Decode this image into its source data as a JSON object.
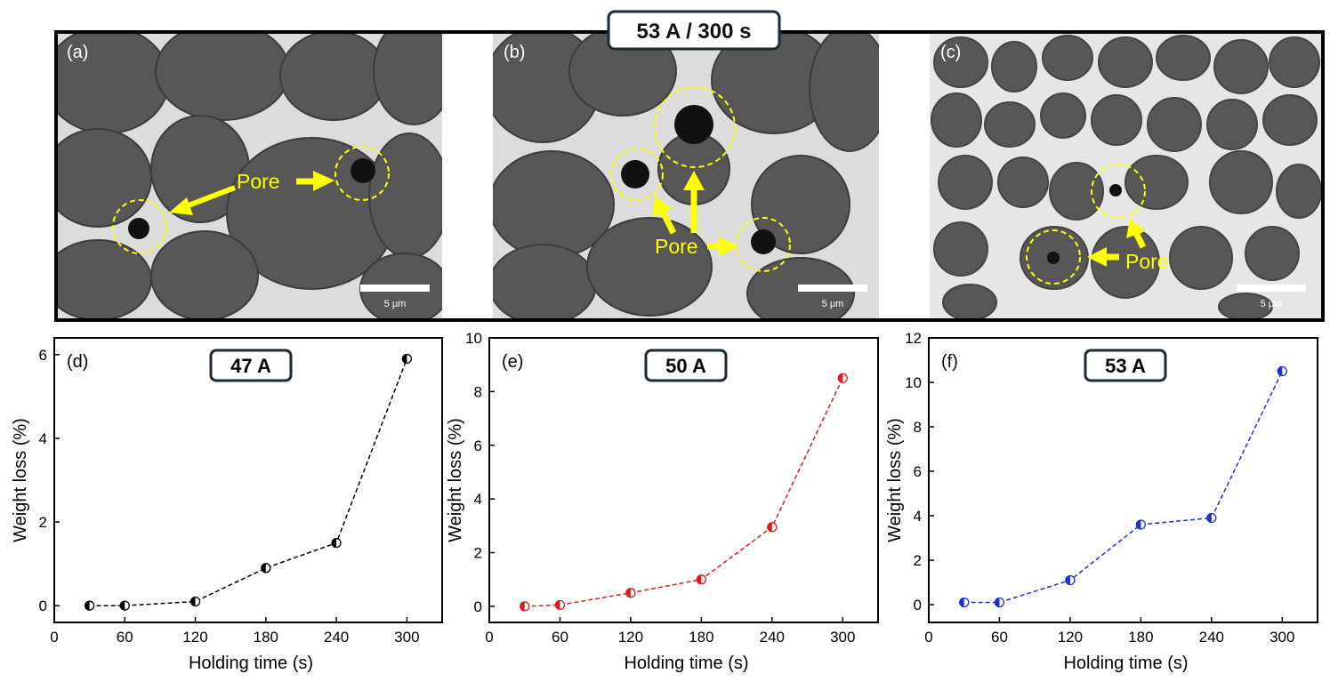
{
  "figure": {
    "header": "53 A / 300 s",
    "panels": [
      {
        "label": "(a)",
        "pore_label": "Pore",
        "scale_bar": "5 μm"
      },
      {
        "label": "(b)",
        "pore_label": "Pore",
        "scale_bar": "5 μm"
      },
      {
        "label": "(c)",
        "pore_label": "Pore",
        "scale_bar": "5 μm"
      }
    ]
  },
  "colors": {
    "panel_bg": "#4d4d4d",
    "grain": "#5a5a5a",
    "binder": "#dcdcdc",
    "annotation": "#ffff00",
    "series_47": "#000000",
    "series_50": "#e31a1c",
    "series_53": "#1f2fd6"
  },
  "chart_data": [
    {
      "type": "line",
      "panel_label": "(d)",
      "title": "47 A",
      "xlabel": "Holding time (s)",
      "ylabel": "Weight loss (%)",
      "xlim": [
        0,
        330
      ],
      "ylim": [
        -0.4,
        6.4
      ],
      "xticks": [
        0,
        60,
        120,
        180,
        240,
        300
      ],
      "yticks": [
        0,
        2,
        4,
        6
      ],
      "x": [
        30,
        60,
        120,
        180,
        240,
        300
      ],
      "values": [
        0.0,
        0.0,
        0.1,
        0.9,
        1.5,
        5.9
      ],
      "color": "#000000"
    },
    {
      "type": "line",
      "panel_label": "(e)",
      "title": "50 A",
      "xlabel": "Holding time (s)",
      "ylabel": "Weight loss (%)",
      "xlim": [
        0,
        330
      ],
      "ylim": [
        -0.6,
        10
      ],
      "xticks": [
        0,
        60,
        120,
        180,
        240,
        300
      ],
      "yticks": [
        0,
        2,
        4,
        6,
        8,
        10
      ],
      "x": [
        30,
        60,
        120,
        180,
        240,
        300
      ],
      "values": [
        0.0,
        0.05,
        0.5,
        1.0,
        2.95,
        8.5
      ],
      "color": "#e31a1c"
    },
    {
      "type": "line",
      "panel_label": "(f)",
      "title": "53 A",
      "xlabel": "Holding time (s)",
      "ylabel": "Weight loss (%)",
      "xlim": [
        0,
        330
      ],
      "ylim": [
        -0.8,
        12
      ],
      "xticks": [
        0,
        60,
        120,
        180,
        240,
        300
      ],
      "yticks": [
        0,
        2,
        4,
        6,
        8,
        10,
        12
      ],
      "x": [
        30,
        60,
        120,
        180,
        240,
        300
      ],
      "values": [
        0.1,
        0.1,
        1.1,
        3.6,
        3.9,
        10.5
      ],
      "color": "#1f2fd6"
    }
  ]
}
